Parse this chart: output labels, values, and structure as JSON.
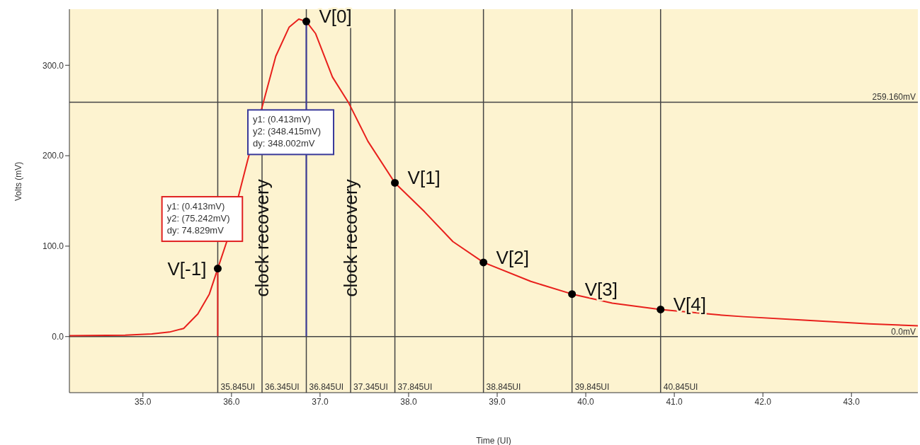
{
  "chart_data": {
    "type": "line",
    "xlabel": "Time (UI)",
    "ylabel": "Volts (mV)",
    "xlim": [
      34.17,
      43.75
    ],
    "ylim": [
      -62,
      362
    ],
    "xticks": [
      {
        "value": 35,
        "label": "35.0"
      },
      {
        "value": 36,
        "label": "36.0"
      },
      {
        "value": 37,
        "label": "37.0"
      },
      {
        "value": 38,
        "label": "38.0"
      },
      {
        "value": 39,
        "label": "39.0"
      },
      {
        "value": 40,
        "label": "40.0"
      },
      {
        "value": 41,
        "label": "41.0"
      },
      {
        "value": 42,
        "label": "42.0"
      },
      {
        "value": 43,
        "label": "43.0"
      }
    ],
    "yticks": [
      {
        "value": 0,
        "label": "0.0"
      },
      {
        "value": 100,
        "label": "100.0"
      },
      {
        "value": 200,
        "label": "200.0"
      },
      {
        "value": 300,
        "label": "300.0"
      }
    ],
    "grid": false,
    "line_style": "solid",
    "marker": "none",
    "series": [
      {
        "color": "#e8201c",
        "x": [
          34.17,
          34.8,
          35.1,
          35.3,
          35.46,
          35.62,
          35.75,
          35.845,
          35.95,
          36.18,
          36.36,
          36.5,
          36.65,
          36.76,
          36.845,
          36.95,
          37.14,
          37.32,
          37.54,
          37.845,
          38.18,
          38.5,
          38.845,
          39.38,
          39.845,
          40.3,
          40.845,
          41.5,
          41.78,
          42.5,
          43.2,
          43.75
        ],
        "values": [
          1,
          1.5,
          3,
          5,
          9,
          25,
          47,
          75.242,
          106,
          194,
          259,
          310,
          342,
          351,
          348.415,
          335,
          287,
          259,
          216,
          170,
          138,
          105,
          82,
          61,
          47,
          37,
          30,
          24,
          22,
          18,
          14,
          12
        ]
      },
      {
        "type": "line",
        "color": "#e02020",
        "x": [
          35.845,
          35.845
        ],
        "values": [
          0.413,
          75.242
        ]
      },
      {
        "type": "line",
        "color": "#3a3a9a",
        "x": [
          36.845,
          36.845
        ],
        "values": [
          0.413,
          348.415
        ]
      },
      {
        "type": "scatter",
        "color": "#000000",
        "marker": "circle",
        "x": [
          35.845,
          36.845,
          37.845,
          38.845,
          39.845,
          40.845
        ],
        "values": [
          75.242,
          348.415,
          170,
          82,
          47,
          30
        ]
      }
    ],
    "ref_lines": [
      {
        "axis": "y",
        "value": 259.16,
        "label": "259.160mV",
        "color": "#444444"
      },
      {
        "axis": "y",
        "value": 0,
        "label": "0.0mV",
        "color": "#444444"
      },
      {
        "axis": "x",
        "value": 35.845,
        "label": "35.845UI",
        "color": "#444444"
      },
      {
        "axis": "x",
        "value": 36.345,
        "label": "36.345UI",
        "color": "#444444"
      },
      {
        "axis": "x",
        "value": 36.845,
        "label": "36.845UI",
        "color": "#444444"
      },
      {
        "axis": "x",
        "value": 37.345,
        "label": "37.345UI",
        "color": "#444444"
      },
      {
        "axis": "x",
        "value": 37.845,
        "label": "37.845UI",
        "color": "#444444"
      },
      {
        "axis": "x",
        "value": 38.845,
        "label": "38.845UI",
        "color": "#444444"
      },
      {
        "axis": "x",
        "value": 39.845,
        "label": "39.845UI",
        "color": "#444444"
      },
      {
        "axis": "x",
        "value": 40.845,
        "label": "40.845UI",
        "color": "#444444"
      }
    ],
    "annotations": [
      {
        "text": "V[-1]",
        "x": 35.845,
        "y": 75.242
      },
      {
        "text": "V[0]",
        "x": 36.845,
        "y": 348.415
      },
      {
        "text": "V[1]",
        "x": 37.845,
        "y": 170
      },
      {
        "text": "V[2]",
        "x": 38.845,
        "y": 82
      },
      {
        "text": "V[3]",
        "x": 39.845,
        "y": 47
      },
      {
        "text": "V[4]",
        "x": 40.845,
        "y": 30
      },
      {
        "text": "clock recovery",
        "x": 36.345,
        "y": 109
      },
      {
        "text": "clock recovery",
        "x": 37.345,
        "y": 109
      },
      {
        "text": "y1: (0.413mV)\ny2: (75.242mV)\ndy: 74.829mV",
        "x": 35.845,
        "y": 130
      },
      {
        "text": "y1: (0.413mV)\ny2: (348.415mV)\ndy: 348.002mV",
        "x": 36.845,
        "y": 226
      }
    ]
  }
}
